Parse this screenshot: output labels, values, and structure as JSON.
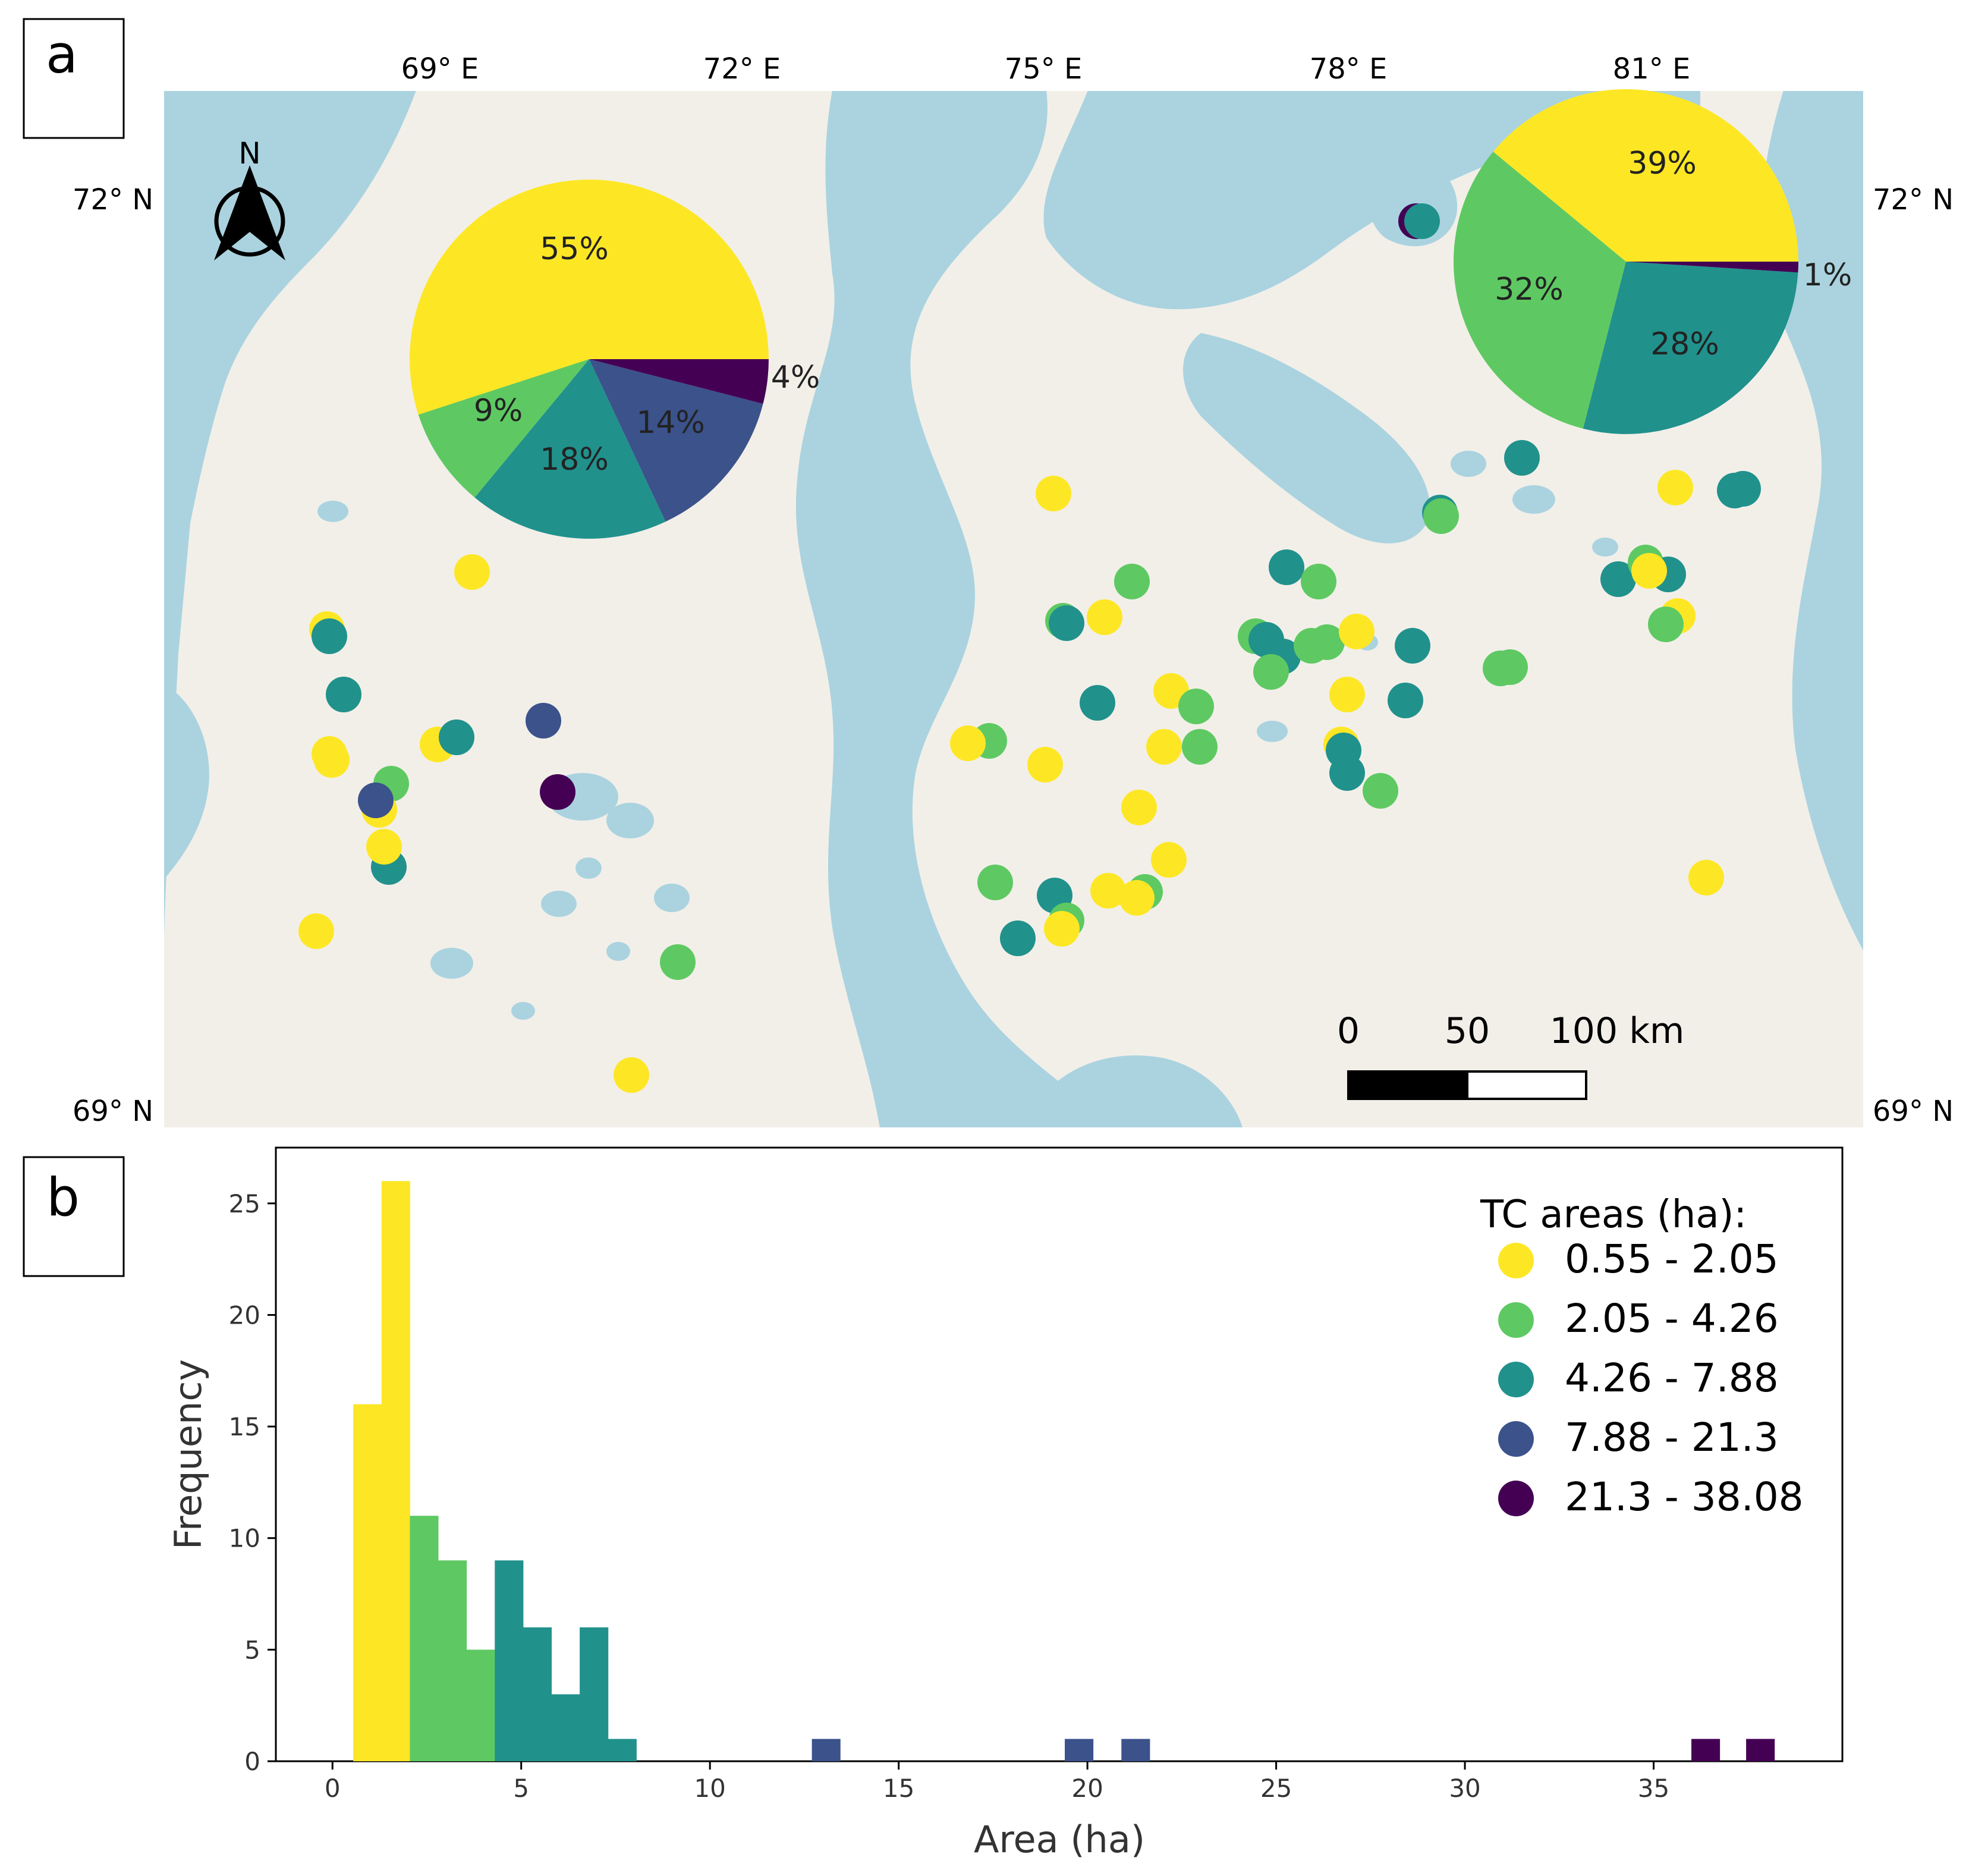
{
  "panel_a": {
    "label": "a",
    "lon_labels": [
      "69° E",
      "72° E",
      "75° E",
      "78° E",
      "81° E"
    ],
    "lat_top_label": "72° N",
    "lat_bottom_label": "69° N",
    "north_label": "N",
    "scale_bar": {
      "tick_0": "0",
      "tick_50": "50",
      "tick_100": "100 km"
    },
    "pie_left": {
      "slices": [
        {
          "label": "55%",
          "value": 55,
          "color": "#fde725"
        },
        {
          "label": "9%",
          "value": 9,
          "color": "#5ec962"
        },
        {
          "label": "18%",
          "value": 18,
          "color": "#21918c"
        },
        {
          "label": "14%",
          "value": 14,
          "color": "#3b528b"
        },
        {
          "label": "4%",
          "value": 4,
          "color": "#440154"
        }
      ]
    },
    "pie_right": {
      "slices": [
        {
          "label": "39%",
          "value": 39,
          "color": "#fde725"
        },
        {
          "label": "32%",
          "value": 32,
          "color": "#5ec962"
        },
        {
          "label": "28%",
          "value": 28,
          "color": "#21918c"
        },
        {
          "label": "1%",
          "value": 1,
          "color": "#440154"
        }
      ]
    }
  },
  "panel_b": {
    "label": "b"
  },
  "colors": {
    "water": "#aad3df",
    "land": "#f2efe9",
    "class_1": "#fde725",
    "class_2": "#5ec962",
    "class_3": "#21918c",
    "class_4": "#3b528b",
    "class_5": "#440154"
  },
  "chart_data": {
    "type": "bar",
    "title": "",
    "xlabel": "Area (ha)",
    "ylabel": "Frequency",
    "xlim": [
      -1.5,
      40
    ],
    "ylim": [
      0,
      27.5
    ],
    "xticks": [
      "0",
      "5",
      "10",
      "15",
      "20",
      "25",
      "30",
      "35"
    ],
    "yticks": [
      "0",
      "5",
      "10",
      "15",
      "20",
      "25"
    ],
    "bin_width": 0.75,
    "bins": [
      {
        "start": 0.55,
        "count": 16,
        "class": 0
      },
      {
        "start": 1.3,
        "count": 26,
        "class": 0
      },
      {
        "start": 2.05,
        "count": 11,
        "class": 1
      },
      {
        "start": 2.8,
        "count": 9,
        "class": 1
      },
      {
        "start": 3.55,
        "count": 5,
        "class": 1
      },
      {
        "start": 4.3,
        "count": 9,
        "class": 2
      },
      {
        "start": 5.05,
        "count": 6,
        "class": 2
      },
      {
        "start": 5.8,
        "count": 3,
        "class": 2
      },
      {
        "start": 6.55,
        "count": 6,
        "class": 2
      },
      {
        "start": 7.3,
        "count": 1,
        "class": 2
      },
      {
        "start": 12.7,
        "count": 1,
        "class": 3
      },
      {
        "start": 19.4,
        "count": 1,
        "class": 3
      },
      {
        "start": 20.9,
        "count": 1,
        "class": 3
      },
      {
        "start": 36.0,
        "count": 1,
        "class": 4
      },
      {
        "start": 37.45,
        "count": 1,
        "class": 4
      }
    ],
    "legend": {
      "title": "TC areas (ha):",
      "position": "top-right",
      "entries": [
        {
          "label": "0.55 - 2.05",
          "color": "#fde725"
        },
        {
          "label": "2.05 - 4.26",
          "color": "#5ec962"
        },
        {
          "label": "4.26 - 7.88",
          "color": "#21918c"
        },
        {
          "label": "7.88 - 21.3",
          "color": "#3b528b"
        },
        {
          "label": "21.3 - 38.08",
          "color": "#440154"
        }
      ]
    }
  }
}
